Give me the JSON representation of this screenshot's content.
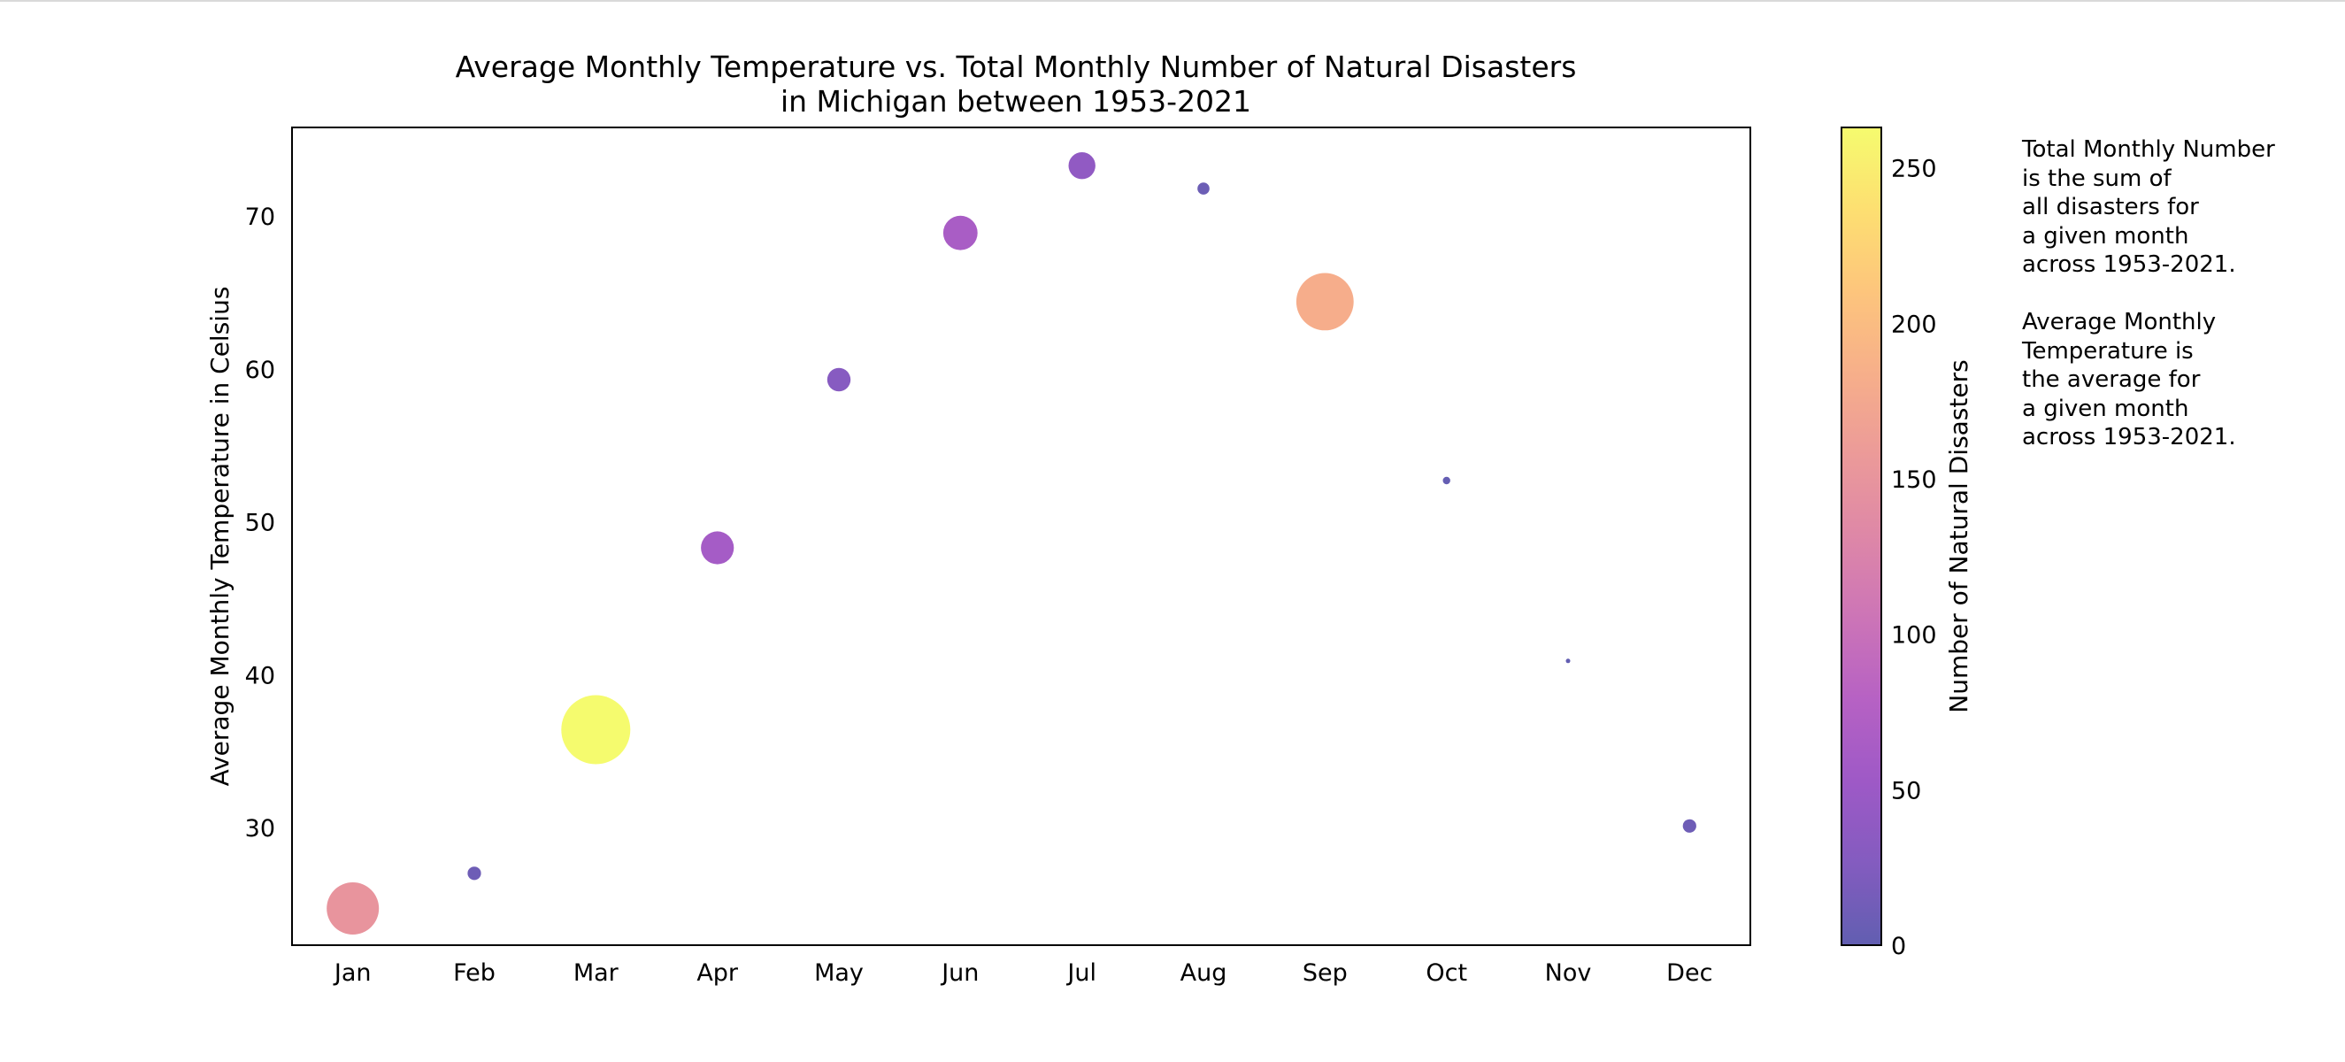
{
  "chart_data": {
    "type": "scatter",
    "title": [
      "Average Monthly Temperature vs. Total Monthly Number of Natural Disasters",
      "in Michigan between 1953-2021"
    ],
    "xlabel": "",
    "ylabel": "Average Monthly Temperature in Celsius",
    "categories": [
      "Jan",
      "Feb",
      "Mar",
      "Apr",
      "May",
      "Jun",
      "Jul",
      "Aug",
      "Sep",
      "Oct",
      "Nov",
      "Dec"
    ],
    "y": [
      24.7,
      27.0,
      36.4,
      48.3,
      59.3,
      68.9,
      73.3,
      71.8,
      64.4,
      52.7,
      40.9,
      30.1
    ],
    "disasters": [
      150,
      10,
      263,
      60,
      30,
      65,
      40,
      8,
      182,
      3,
      1,
      10
    ],
    "ylim": [
      22.3,
      75.8
    ],
    "yticks": [
      30,
      40,
      50,
      60,
      70
    ],
    "colorbar": {
      "label": "Number of Natural Disasters",
      "range": [
        0,
        263
      ],
      "ticks": [
        0,
        50,
        100,
        150,
        200,
        250
      ],
      "colormap": "plasma",
      "alpha": 0.65
    },
    "grid": false,
    "legend": "none"
  },
  "notes": {
    "note1": [
      "Total Monthly Number",
      "is the sum of",
      "all disasters for",
      "a given month",
      "across 1953-2021."
    ],
    "note2": [
      "Average Monthly",
      "Temperature is",
      "the average for",
      "a given month",
      "across 1953-2021."
    ]
  }
}
